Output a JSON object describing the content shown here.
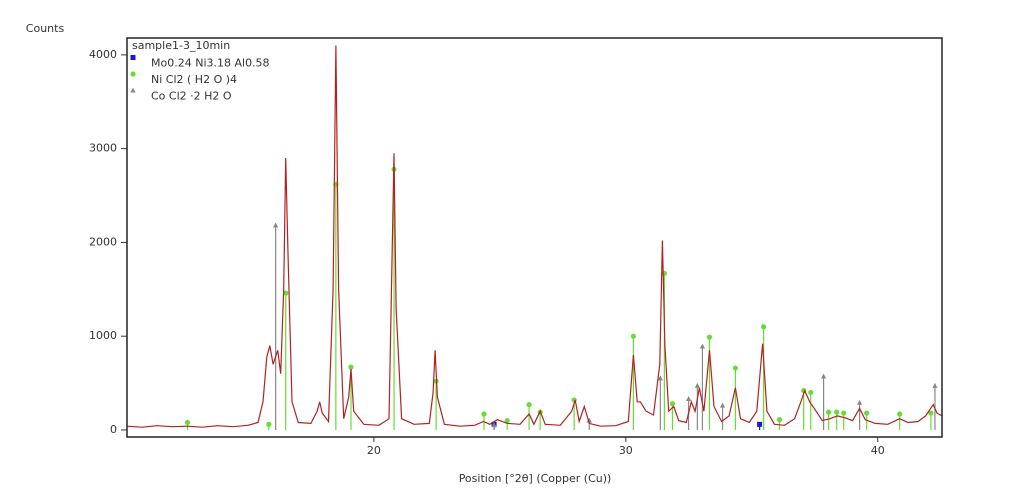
{
  "chart_data": {
    "type": "line",
    "y_label": "Counts",
    "x_label": "Position [°2θ] (Copper (Cu))",
    "xlim": [
      10.2,
      42.55
    ],
    "xticks": [
      20,
      30,
      40
    ],
    "ylim": [
      -75,
      4180
    ],
    "yticks": [
      0,
      1000,
      2000,
      3000,
      4000
    ],
    "grid": false,
    "legend": "top-left",
    "series": [
      {
        "name": "sample1-3_10min",
        "color": "#b22222",
        "style": "line",
        "x": [
          10.2,
          10.8,
          11.4,
          12.0,
          12.6,
          13.2,
          13.8,
          14.4,
          15.0,
          15.4,
          15.6,
          15.75,
          15.87,
          16.0,
          16.18,
          16.3,
          16.42,
          16.5,
          16.6,
          16.75,
          17.0,
          17.5,
          17.75,
          17.85,
          17.95,
          18.2,
          18.38,
          18.49,
          18.6,
          18.8,
          19.0,
          19.09,
          19.2,
          19.6,
          20.2,
          20.6,
          20.72,
          20.8,
          20.88,
          21.1,
          21.6,
          22.2,
          22.35,
          22.43,
          22.52,
          22.8,
          23.4,
          24.0,
          24.35,
          24.6,
          24.9,
          25.3,
          25.8,
          26.16,
          26.35,
          26.6,
          26.8,
          27.4,
          27.85,
          27.99,
          28.15,
          28.35,
          28.55,
          29.0,
          29.6,
          30.1,
          30.3,
          30.45,
          30.58,
          30.8,
          31.1,
          31.35,
          31.45,
          31.55,
          31.7,
          31.9,
          32.1,
          32.4,
          32.6,
          32.75,
          32.92,
          33.1,
          33.32,
          33.5,
          33.8,
          34.1,
          34.35,
          34.55,
          34.9,
          35.2,
          35.43,
          35.6,
          35.9,
          36.3,
          36.7,
          36.95,
          37.1,
          37.3,
          37.5,
          37.8,
          38.1,
          38.4,
          38.7,
          39.0,
          39.28,
          39.5,
          39.9,
          40.4,
          40.87,
          41.2,
          41.6,
          41.9,
          42.2,
          42.35,
          42.55
        ],
        "values": [
          40,
          30,
          45,
          35,
          40,
          30,
          45,
          35,
          50,
          80,
          300,
          780,
          900,
          700,
          850,
          600,
          1500,
          2900,
          1800,
          300,
          80,
          70,
          200,
          300,
          180,
          90,
          1500,
          4100,
          1500,
          120,
          350,
          650,
          200,
          60,
          50,
          120,
          1800,
          2950,
          1300,
          120,
          60,
          70,
          400,
          850,
          350,
          60,
          40,
          50,
          90,
          60,
          110,
          70,
          60,
          170,
          60,
          200,
          60,
          50,
          200,
          320,
          90,
          250,
          70,
          40,
          45,
          90,
          800,
          300,
          300,
          200,
          160,
          700,
          2020,
          900,
          200,
          250,
          100,
          80,
          300,
          200,
          450,
          200,
          850,
          250,
          90,
          150,
          450,
          120,
          80,
          200,
          920,
          200,
          60,
          50,
          120,
          300,
          420,
          300,
          220,
          100,
          120,
          150,
          130,
          100,
          230,
          110,
          70,
          60,
          120,
          80,
          90,
          150,
          270,
          180,
          150
        ]
      },
      {
        "name": "Mo0.24 Ni3.18 Al0.58",
        "color": "#1a1acc",
        "style": "stick",
        "marker": "square",
        "x": [
          24.77,
          35.31
        ],
        "values": [
          60,
          60
        ]
      },
      {
        "name": "Ni Cl2 ( H2 O )4",
        "color": "#66dd33",
        "style": "stick",
        "marker": "circle",
        "x": [
          12.6,
          15.83,
          16.5,
          18.49,
          19.09,
          20.8,
          22.47,
          24.37,
          25.29,
          26.16,
          26.6,
          27.95,
          30.3,
          31.53,
          31.85,
          33.32,
          34.35,
          35.47,
          36.1,
          37.06,
          37.34,
          38.05,
          38.37,
          38.65,
          39.56,
          40.87,
          42.11
        ],
        "values": [
          80,
          60,
          1460,
          2620,
          670,
          2780,
          520,
          170,
          100,
          270,
          190,
          320,
          1000,
          1670,
          280,
          990,
          660,
          1100,
          110,
          420,
          400,
          190,
          190,
          180,
          180,
          170,
          180
        ]
      },
      {
        "name": "Co Cl2 ·2 H2 O",
        "color": "#888888",
        "style": "stick",
        "marker": "triangle",
        "x": [
          16.1,
          24.77,
          28.55,
          31.37,
          32.49,
          32.84,
          33.04,
          33.84,
          37.85,
          39.28,
          42.27
        ],
        "values": [
          2180,
          50,
          100,
          550,
          330,
          470,
          890,
          260,
          570,
          290,
          470
        ]
      }
    ]
  }
}
